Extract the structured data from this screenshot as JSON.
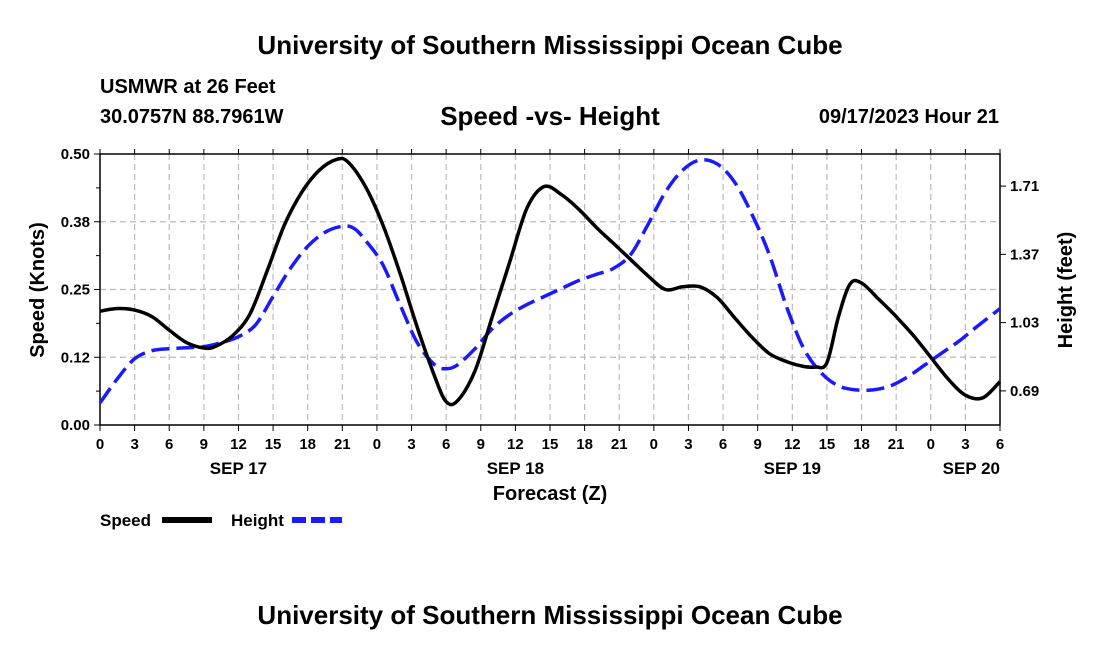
{
  "title_top": "University of Southern Mississippi Ocean Cube",
  "title_bottom": "University of Southern Mississippi Ocean Cube",
  "station": "USMWR at 26 Feet",
  "location": "30.0757N  88.7961W",
  "chart_title": "Speed -vs- Height",
  "timestamp": "09/17/2023 Hour 21",
  "legend": {
    "speed_label": "Speed",
    "height_label": "Height"
  },
  "colors": {
    "speed": "#000000",
    "height": "#1a1aff",
    "grid": "#bbbbbb"
  },
  "chart_data": {
    "type": "line",
    "title": "Speed -vs- Height",
    "xlabel": "Forecast (Z)",
    "ylabel": "Speed (Knots)",
    "y2label": "Height (feet)",
    "x_range_hours": [
      0,
      78
    ],
    "ylim": [
      0,
      0.5
    ],
    "y2lim": [
      0.52,
      1.87
    ],
    "yticks": [
      "0.00",
      "0.12",
      "0.25",
      "0.38",
      "0.50"
    ],
    "y2ticks": [
      "0.69",
      "1.03",
      "1.37",
      "1.71"
    ],
    "xtick_labels": [
      "0",
      "3",
      "6",
      "9",
      "12",
      "15",
      "18",
      "21",
      "0",
      "3",
      "6",
      "9",
      "12",
      "15",
      "18",
      "21",
      "0",
      "3",
      "6",
      "9",
      "12",
      "15",
      "18",
      "21",
      "0",
      "3",
      "6"
    ],
    "day_labels": [
      {
        "hour": 12,
        "label": "SEP 17"
      },
      {
        "hour": 36,
        "label": "SEP 18"
      },
      {
        "hour": 60,
        "label": "SEP 19"
      },
      {
        "hour": 78,
        "label": "SEP 20"
      }
    ],
    "series": [
      {
        "name": "Speed",
        "axis": "left",
        "style": "solid",
        "x": [
          0,
          1.5,
          3,
          4.5,
          6,
          7.5,
          9,
          10,
          11.5,
          13,
          14.5,
          16,
          17.5,
          19,
          20.5,
          21.5,
          23,
          24.5,
          26,
          27.5,
          29,
          30,
          31,
          32.5,
          34,
          35.5,
          37,
          38.5,
          40,
          41.5,
          43,
          44.5,
          46,
          47.5,
          49,
          50.5,
          52,
          53.5,
          55,
          56.5,
          58,
          59.5,
          61,
          62,
          63,
          64,
          65,
          66,
          67.5,
          69,
          70.5,
          72,
          73.5,
          75,
          76.5,
          78
        ],
        "values": [
          0.21,
          0.215,
          0.212,
          0.2,
          0.175,
          0.152,
          0.142,
          0.145,
          0.165,
          0.205,
          0.285,
          0.37,
          0.43,
          0.47,
          0.49,
          0.485,
          0.44,
          0.37,
          0.28,
          0.18,
          0.09,
          0.043,
          0.045,
          0.1,
          0.2,
          0.3,
          0.4,
          0.44,
          0.425,
          0.398,
          0.365,
          0.335,
          0.305,
          0.275,
          0.25,
          0.255,
          0.255,
          0.235,
          0.198,
          0.162,
          0.132,
          0.117,
          0.108,
          0.107,
          0.115,
          0.2,
          0.26,
          0.262,
          0.232,
          0.2,
          0.165,
          0.125,
          0.085,
          0.055,
          0.05,
          0.08
        ]
      },
      {
        "name": "Height",
        "axis": "right",
        "style": "dashed",
        "x": [
          0,
          1.5,
          3,
          4.5,
          6,
          7.5,
          9,
          10.5,
          12,
          13.5,
          15,
          16.5,
          18,
          19.5,
          21,
          22,
          23,
          24.5,
          26,
          27.5,
          29,
          30,
          31,
          32.5,
          34,
          35.5,
          37,
          38.5,
          40,
          41.5,
          43,
          44.5,
          46,
          47.5,
          49,
          50.5,
          52,
          53.5,
          55,
          56.5,
          58,
          59.5,
          61,
          62.5,
          64,
          65.5,
          67,
          68.5,
          70,
          71.5,
          73,
          74.5,
          76,
          78
        ],
        "values": [
          0.63,
          0.75,
          0.85,
          0.89,
          0.9,
          0.905,
          0.91,
          0.93,
          0.96,
          1.02,
          1.16,
          1.3,
          1.41,
          1.48,
          1.51,
          1.5,
          1.44,
          1.32,
          1.12,
          0.93,
          0.82,
          0.8,
          0.82,
          0.9,
          1.0,
          1.07,
          1.12,
          1.16,
          1.2,
          1.24,
          1.27,
          1.3,
          1.37,
          1.52,
          1.68,
          1.79,
          1.84,
          1.82,
          1.73,
          1.57,
          1.37,
          1.11,
          0.9,
          0.78,
          0.715,
          0.695,
          0.695,
          0.715,
          0.76,
          0.82,
          0.88,
          0.94,
          1.01,
          1.1
        ]
      }
    ]
  }
}
